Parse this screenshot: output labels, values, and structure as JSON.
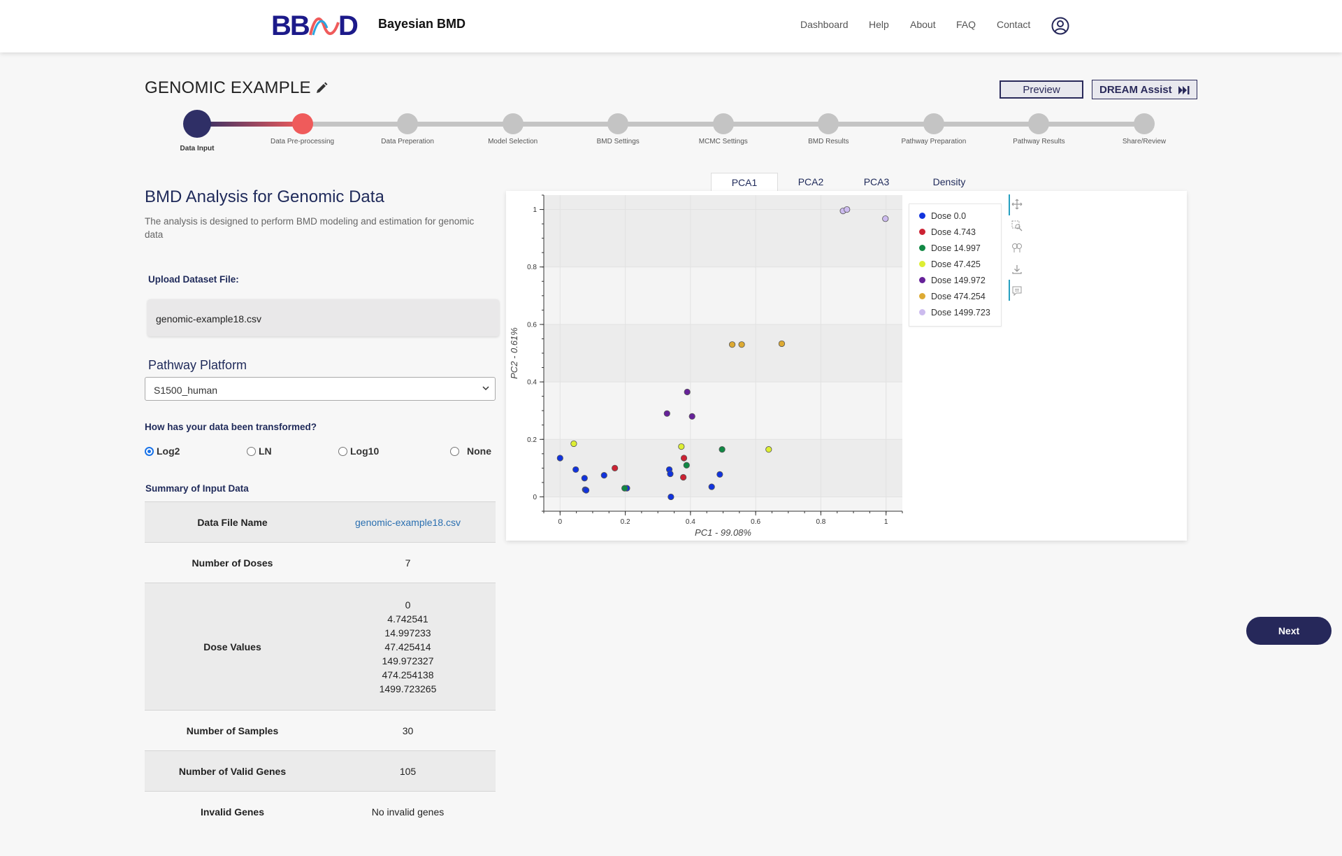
{
  "header": {
    "logo_text": "BBMD",
    "brand": "Bayesian BMD",
    "nav": [
      "Dashboard",
      "Help",
      "About",
      "FAQ",
      "Contact"
    ]
  },
  "page": {
    "title": "GENOMIC EXAMPLE",
    "preview_label": "Preview",
    "dream_label": "DREAM Assist"
  },
  "stepper": {
    "steps": [
      "Data Input",
      "Data Pre-processing",
      "Data Preperation",
      "Model Selection",
      "BMD Settings",
      "MCMC Settings",
      "BMD Results",
      "Pathway Preparation",
      "Pathway Results",
      "Share/Review"
    ],
    "active_index": 0,
    "completed_index": 1
  },
  "left": {
    "heading": "BMD Analysis for Genomic Data",
    "description": "The analysis is designed to perform BMD modeling and estimation for genomic data",
    "upload_label": "Upload Dataset File:",
    "upload_file": "genomic-example18.csv",
    "pathway_label": "Pathway Platform",
    "pathway_value": "S1500_human",
    "transform_label": "How has your data been transformed?",
    "transform_options": [
      "Log2",
      "LN",
      "Log10",
      "None"
    ],
    "transform_selected": "Log2",
    "summary_label": "Summary of Input Data"
  },
  "summary": {
    "rows": [
      {
        "key": "Data File Name",
        "value": "genomic-example18.csv"
      },
      {
        "key": "Number of Doses",
        "value": "7"
      },
      {
        "key": "Dose Values",
        "values": [
          "0",
          "4.742541",
          "14.997233",
          "47.425414",
          "149.972327",
          "474.254138",
          "1499.723265"
        ]
      },
      {
        "key": "Number of Samples",
        "value": "30"
      },
      {
        "key": "Number of Valid Genes",
        "value": "105"
      },
      {
        "key": "Invalid Genes",
        "value": "No invalid genes"
      }
    ]
  },
  "tabs": [
    "PCA1",
    "PCA2",
    "PCA3",
    "Density"
  ],
  "active_tab": "PCA1",
  "next_label": "Next",
  "colors": {
    "primary": "#26285a",
    "accent": "#ef5b5b",
    "link": "#2a6fb0"
  },
  "icons": [
    "edit-icon",
    "fast-forward-icon",
    "user-circle-icon",
    "pan-icon",
    "box-zoom-icon",
    "wheel-zoom-icon",
    "save-icon",
    "hover-icon",
    "chevron-down-icon"
  ],
  "chart_data": {
    "type": "scatter",
    "xlabel": "PC1 - 99.08%",
    "ylabel": "PC2 - 0.61%",
    "xlim": [
      -0.05,
      1.05
    ],
    "ylim": [
      -0.05,
      1.05
    ],
    "xticks": [
      0,
      0.2,
      0.4,
      0.6,
      0.8,
      1
    ],
    "yticks": [
      0,
      0.2,
      0.4,
      0.6,
      0.8,
      1
    ],
    "legend_position": "right",
    "series": [
      {
        "name": "Dose 0.0",
        "color": "#1133dd",
        "points": [
          [
            0.0,
            0.135
          ],
          [
            0.048,
            0.095
          ],
          [
            0.075,
            0.065
          ],
          [
            0.077,
            0.025
          ],
          [
            0.08,
            0.023
          ],
          [
            0.135,
            0.075
          ],
          [
            0.335,
            0.095
          ],
          [
            0.338,
            0.08
          ],
          [
            0.34,
            0.0
          ],
          [
            0.465,
            0.035
          ],
          [
            0.49,
            0.078
          ],
          [
            0.205,
            0.03
          ]
        ]
      },
      {
        "name": "Dose 4.743",
        "color": "#cc2233",
        "points": [
          [
            0.168,
            0.1
          ],
          [
            0.38,
            0.135
          ],
          [
            0.378,
            0.068
          ]
        ]
      },
      {
        "name": "Dose 14.997",
        "color": "#118844",
        "points": [
          [
            0.198,
            0.03
          ],
          [
            0.388,
            0.11
          ],
          [
            0.497,
            0.165
          ]
        ]
      },
      {
        "name": "Dose 47.425",
        "color": "#ddee33",
        "points": [
          [
            0.042,
            0.185
          ],
          [
            0.372,
            0.175
          ],
          [
            0.64,
            0.165
          ]
        ]
      },
      {
        "name": "Dose 149.972",
        "color": "#662299",
        "points": [
          [
            0.39,
            0.365
          ],
          [
            0.328,
            0.29
          ],
          [
            0.405,
            0.28
          ]
        ]
      },
      {
        "name": "Dose 474.254",
        "color": "#ddaa33",
        "points": [
          [
            0.528,
            0.53
          ],
          [
            0.557,
            0.53
          ],
          [
            0.68,
            0.533
          ]
        ]
      },
      {
        "name": "Dose 1499.723",
        "color": "#ccbbee",
        "points": [
          [
            0.868,
            0.995
          ],
          [
            0.88,
            1.0
          ],
          [
            0.998,
            0.968
          ]
        ]
      }
    ]
  }
}
